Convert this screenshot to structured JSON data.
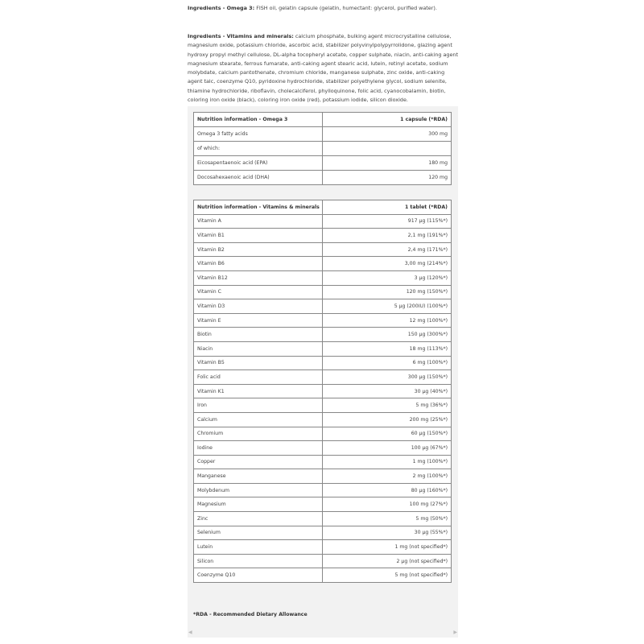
{
  "ingredients": [
    {
      "label": "Ingredients - Omega 3:",
      "text": "FISH oil, gelatin capsule (gelatin, humectant: glycerol, purified water)."
    },
    {
      "label": "Ingredients - Vitamins and minerals:",
      "text": "calcium phosphate, bulking agent microcrystalline cellulose, magnesium oxide, potassium chloride, ascorbic acid, stabilizer polyvinylpolypyrrolidone, glazing agent hydroxy propyl methyl cellulose, DL-alpha tocopheryl acetate, copper sulphate, niacin, anti-caking agent magnesium stearate, ferrous fumarate, anti-caking agent stearic acid, lutein, retinyl acetate, sodium molybdate, calcium pantothenate, chromium chloride, manganese sulphate, zinc oxide, anti-caking agent talc, coenzyme Q10, pyridoxine hydrochloride, stabilizer polyethylene glycol, sodium selenite, thiamine hydrochloride, riboflavin, cholecalciferol, phylloquinone, folic acid, cyanocobalamin, biotin, coloring iron oxide (black), coloring iron oxide (red), potassium iodide, silicon dioxide."
    }
  ],
  "tables": [
    {
      "header": [
        "Nutrition information - Omega 3",
        "1 capsule (*RDA)"
      ],
      "rows": [
        [
          "Omega 3 fatty acids",
          "300 mg"
        ],
        [
          "of which:",
          null
        ],
        [
          "Eicosapentaenoic acid (EPA)",
          "180 mg"
        ],
        [
          "Docosahexaenoic acid (DHA)",
          "120 mg"
        ]
      ]
    },
    {
      "header": [
        "Nutrition information - Vitamins & minerals",
        "1 tablet (*RDA)"
      ],
      "rows": [
        [
          "Vitamin A",
          "917 µg (115%*)"
        ],
        [
          "Vitamin B1",
          "2,1 mg (191%*)"
        ],
        [
          "Vitamin B2",
          "2,4 mg (171%*)"
        ],
        [
          "Vitamin B6",
          "3,00 mg (214%*)"
        ],
        [
          "Vitamin B12",
          "3 µg (120%*)"
        ],
        [
          "Vitamin C",
          "120 mg (150%*)"
        ],
        [
          "Vitamin D3",
          "5 µg (200IU) (100%*)"
        ],
        [
          "Vitamin E",
          "12 mg (100%*)"
        ],
        [
          "Biotin",
          "150 µg (300%*)"
        ],
        [
          "Niacin",
          "18 mg (113%*)"
        ],
        [
          "Vitamin B5",
          "6 mg (100%*)"
        ],
        [
          "Folic acid",
          "300 µg (150%*)"
        ],
        [
          "Vitamin K1",
          "30 µg (40%*)"
        ],
        [
          "Iron",
          "5 mg (36%*)"
        ],
        [
          "Calcium",
          "200 mg (25%*)"
        ],
        [
          "Chromium",
          "60 µg (150%*)"
        ],
        [
          "Iodine",
          "100 µg (67%*)"
        ],
        [
          "Copper",
          "1 mg (100%*)"
        ],
        [
          "Manganese",
          "2 mg (100%*)"
        ],
        [
          "Molybdenum",
          "80 µg (160%*)"
        ],
        [
          "Magnesium",
          "100 mg (27%*)"
        ],
        [
          "Zinc",
          "5 mg (50%*)"
        ],
        [
          "Selenium",
          "30 µg (55%*)"
        ],
        [
          "Lutein",
          "1 mg (not specified*)"
        ],
        [
          "Silicon",
          "2 µg (not specified*)"
        ],
        [
          "Coenzyme Q10",
          "5 mg (not specified*)"
        ]
      ]
    }
  ],
  "footnote": "*RDA - Recommended Dietary Allowance"
}
